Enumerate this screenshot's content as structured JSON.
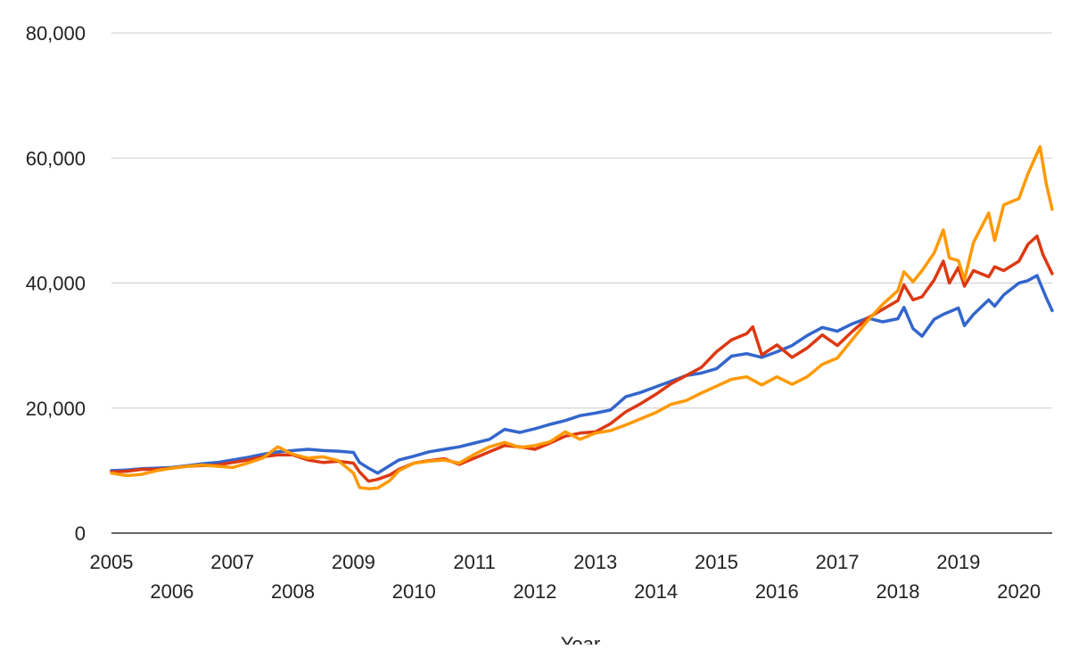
{
  "chart_data": {
    "type": "line",
    "title": "",
    "xlabel": "Year",
    "ylabel": "",
    "ylim": [
      0,
      80000
    ],
    "xlim": [
      2005.0,
      2020.55
    ],
    "y_ticks": [
      {
        "value": 0,
        "label": "0"
      },
      {
        "value": 20000,
        "label": "20,000"
      },
      {
        "value": 40000,
        "label": "40,000"
      },
      {
        "value": 60000,
        "label": "60,000"
      },
      {
        "value": 80000,
        "label": "80,000"
      }
    ],
    "x_ticks": [
      {
        "value": 2005,
        "label": "2005"
      },
      {
        "value": 2006,
        "label": "2006"
      },
      {
        "value": 2007,
        "label": "2007"
      },
      {
        "value": 2008,
        "label": "2008"
      },
      {
        "value": 2009,
        "label": "2009"
      },
      {
        "value": 2010,
        "label": "2010"
      },
      {
        "value": 2011,
        "label": "2011"
      },
      {
        "value": 2012,
        "label": "2012"
      },
      {
        "value": 2013,
        "label": "2013"
      },
      {
        "value": 2014,
        "label": "2014"
      },
      {
        "value": 2015,
        "label": "2015"
      },
      {
        "value": 2016,
        "label": "2016"
      },
      {
        "value": 2017,
        "label": "2017"
      },
      {
        "value": 2018,
        "label": "2018"
      },
      {
        "value": 2019,
        "label": "2019"
      },
      {
        "value": 2020,
        "label": "2020"
      }
    ],
    "grid": true,
    "legend": "none",
    "series": [
      {
        "color": "#3366cc",
        "points": [
          [
            2005.0,
            10000
          ],
          [
            2005.25,
            10100
          ],
          [
            2005.5,
            10300
          ],
          [
            2005.75,
            10400
          ],
          [
            2006.0,
            10500
          ],
          [
            2006.25,
            10800
          ],
          [
            2006.5,
            11100
          ],
          [
            2006.75,
            11300
          ],
          [
            2007.0,
            11700
          ],
          [
            2007.25,
            12100
          ],
          [
            2007.5,
            12600
          ],
          [
            2007.75,
            13000
          ],
          [
            2008.0,
            13200
          ],
          [
            2008.25,
            13400
          ],
          [
            2008.5,
            13200
          ],
          [
            2008.75,
            13100
          ],
          [
            2009.0,
            12900
          ],
          [
            2009.1,
            11300
          ],
          [
            2009.25,
            10400
          ],
          [
            2009.4,
            9600
          ],
          [
            2009.6,
            10800
          ],
          [
            2009.75,
            11700
          ],
          [
            2010.0,
            12300
          ],
          [
            2010.25,
            13000
          ],
          [
            2010.5,
            13400
          ],
          [
            2010.75,
            13800
          ],
          [
            2011.0,
            14400
          ],
          [
            2011.25,
            15000
          ],
          [
            2011.5,
            16600
          ],
          [
            2011.75,
            16100
          ],
          [
            2012.0,
            16700
          ],
          [
            2012.25,
            17400
          ],
          [
            2012.5,
            18000
          ],
          [
            2012.75,
            18800
          ],
          [
            2013.0,
            19200
          ],
          [
            2013.25,
            19700
          ],
          [
            2013.5,
            21800
          ],
          [
            2013.75,
            22500
          ],
          [
            2014.0,
            23400
          ],
          [
            2014.25,
            24300
          ],
          [
            2014.5,
            25200
          ],
          [
            2014.75,
            25600
          ],
          [
            2015.0,
            26300
          ],
          [
            2015.25,
            28300
          ],
          [
            2015.5,
            28700
          ],
          [
            2015.75,
            28100
          ],
          [
            2016.0,
            29000
          ],
          [
            2016.25,
            30000
          ],
          [
            2016.5,
            31600
          ],
          [
            2016.75,
            32900
          ],
          [
            2017.0,
            32300
          ],
          [
            2017.25,
            33500
          ],
          [
            2017.5,
            34400
          ],
          [
            2017.75,
            33800
          ],
          [
            2018.0,
            34300
          ],
          [
            2018.1,
            36100
          ],
          [
            2018.25,
            32700
          ],
          [
            2018.4,
            31500
          ],
          [
            2018.6,
            34200
          ],
          [
            2018.75,
            35000
          ],
          [
            2019.0,
            36000
          ],
          [
            2019.1,
            33200
          ],
          [
            2019.25,
            35000
          ],
          [
            2019.5,
            37300
          ],
          [
            2019.6,
            36300
          ],
          [
            2019.75,
            38100
          ],
          [
            2020.0,
            40000
          ],
          [
            2020.15,
            40400
          ],
          [
            2020.3,
            41200
          ],
          [
            2020.45,
            37700
          ],
          [
            2020.55,
            35600
          ]
        ]
      },
      {
        "color": "#dc3912",
        "points": [
          [
            2005.0,
            9800
          ],
          [
            2005.25,
            9900
          ],
          [
            2005.5,
            10200
          ],
          [
            2005.75,
            10200
          ],
          [
            2006.0,
            10400
          ],
          [
            2006.25,
            10700
          ],
          [
            2006.5,
            10800
          ],
          [
            2006.75,
            10900
          ],
          [
            2007.0,
            11300
          ],
          [
            2007.25,
            11700
          ],
          [
            2007.5,
            12200
          ],
          [
            2007.75,
            12500
          ],
          [
            2008.0,
            12500
          ],
          [
            2008.25,
            11700
          ],
          [
            2008.5,
            11300
          ],
          [
            2008.75,
            11500
          ],
          [
            2009.0,
            11200
          ],
          [
            2009.1,
            9800
          ],
          [
            2009.25,
            8300
          ],
          [
            2009.4,
            8600
          ],
          [
            2009.6,
            9300
          ],
          [
            2009.75,
            10200
          ],
          [
            2010.0,
            11200
          ],
          [
            2010.25,
            11600
          ],
          [
            2010.5,
            11900
          ],
          [
            2010.75,
            11000
          ],
          [
            2011.0,
            12000
          ],
          [
            2011.25,
            13000
          ],
          [
            2011.5,
            14000
          ],
          [
            2011.75,
            13800
          ],
          [
            2012.0,
            13400
          ],
          [
            2012.25,
            14400
          ],
          [
            2012.5,
            15500
          ],
          [
            2012.75,
            16000
          ],
          [
            2013.0,
            16200
          ],
          [
            2013.25,
            17500
          ],
          [
            2013.5,
            19400
          ],
          [
            2013.75,
            20700
          ],
          [
            2014.0,
            22200
          ],
          [
            2014.25,
            23900
          ],
          [
            2014.5,
            25200
          ],
          [
            2014.75,
            26500
          ],
          [
            2015.0,
            29000
          ],
          [
            2015.25,
            30900
          ],
          [
            2015.5,
            31900
          ],
          [
            2015.6,
            33000
          ],
          [
            2015.75,
            28500
          ],
          [
            2016.0,
            30100
          ],
          [
            2016.25,
            28100
          ],
          [
            2016.5,
            29600
          ],
          [
            2016.75,
            31700
          ],
          [
            2017.0,
            30000
          ],
          [
            2017.25,
            32300
          ],
          [
            2017.5,
            34400
          ],
          [
            2017.75,
            35800
          ],
          [
            2018.0,
            37200
          ],
          [
            2018.1,
            39700
          ],
          [
            2018.25,
            37300
          ],
          [
            2018.4,
            37800
          ],
          [
            2018.6,
            40500
          ],
          [
            2018.75,
            43500
          ],
          [
            2018.85,
            40000
          ],
          [
            2019.0,
            42500
          ],
          [
            2019.1,
            39500
          ],
          [
            2019.25,
            42000
          ],
          [
            2019.5,
            41000
          ],
          [
            2019.6,
            42600
          ],
          [
            2019.75,
            42000
          ],
          [
            2020.0,
            43500
          ],
          [
            2020.15,
            46200
          ],
          [
            2020.3,
            47500
          ],
          [
            2020.4,
            44500
          ],
          [
            2020.55,
            41500
          ]
        ]
      },
      {
        "color": "#ff9900",
        "points": [
          [
            2005.0,
            9600
          ],
          [
            2005.25,
            9200
          ],
          [
            2005.5,
            9400
          ],
          [
            2005.75,
            10000
          ],
          [
            2006.0,
            10400
          ],
          [
            2006.25,
            10700
          ],
          [
            2006.5,
            10900
          ],
          [
            2006.75,
            10700
          ],
          [
            2007.0,
            10500
          ],
          [
            2007.25,
            11200
          ],
          [
            2007.5,
            12000
          ],
          [
            2007.75,
            13800
          ],
          [
            2008.0,
            12600
          ],
          [
            2008.25,
            12000
          ],
          [
            2008.5,
            12200
          ],
          [
            2008.75,
            11600
          ],
          [
            2009.0,
            9600
          ],
          [
            2009.1,
            7300
          ],
          [
            2009.25,
            7100
          ],
          [
            2009.4,
            7200
          ],
          [
            2009.6,
            8400
          ],
          [
            2009.75,
            10000
          ],
          [
            2010.0,
            11200
          ],
          [
            2010.25,
            11500
          ],
          [
            2010.5,
            11700
          ],
          [
            2010.75,
            11200
          ],
          [
            2011.0,
            12600
          ],
          [
            2011.25,
            13800
          ],
          [
            2011.5,
            14500
          ],
          [
            2011.75,
            13700
          ],
          [
            2012.0,
            14000
          ],
          [
            2012.25,
            14600
          ],
          [
            2012.5,
            16200
          ],
          [
            2012.75,
            15000
          ],
          [
            2013.0,
            16000
          ],
          [
            2013.25,
            16400
          ],
          [
            2013.5,
            17300
          ],
          [
            2013.75,
            18300
          ],
          [
            2014.0,
            19300
          ],
          [
            2014.25,
            20600
          ],
          [
            2014.5,
            21200
          ],
          [
            2014.75,
            22400
          ],
          [
            2015.0,
            23500
          ],
          [
            2015.25,
            24600
          ],
          [
            2015.5,
            25000
          ],
          [
            2015.75,
            23700
          ],
          [
            2016.0,
            25000
          ],
          [
            2016.25,
            23800
          ],
          [
            2016.5,
            25000
          ],
          [
            2016.75,
            27000
          ],
          [
            2017.0,
            28000
          ],
          [
            2017.25,
            31000
          ],
          [
            2017.5,
            34000
          ],
          [
            2017.75,
            36600
          ],
          [
            2018.0,
            38800
          ],
          [
            2018.1,
            41800
          ],
          [
            2018.25,
            40200
          ],
          [
            2018.4,
            42000
          ],
          [
            2018.6,
            44800
          ],
          [
            2018.75,
            48500
          ],
          [
            2018.85,
            44000
          ],
          [
            2019.0,
            43600
          ],
          [
            2019.1,
            40500
          ],
          [
            2019.25,
            46500
          ],
          [
            2019.5,
            51200
          ],
          [
            2019.6,
            46800
          ],
          [
            2019.75,
            52500
          ],
          [
            2020.0,
            53500
          ],
          [
            2020.15,
            57500
          ],
          [
            2020.35,
            61800
          ],
          [
            2020.45,
            56000
          ],
          [
            2020.55,
            51800
          ]
        ]
      }
    ]
  }
}
